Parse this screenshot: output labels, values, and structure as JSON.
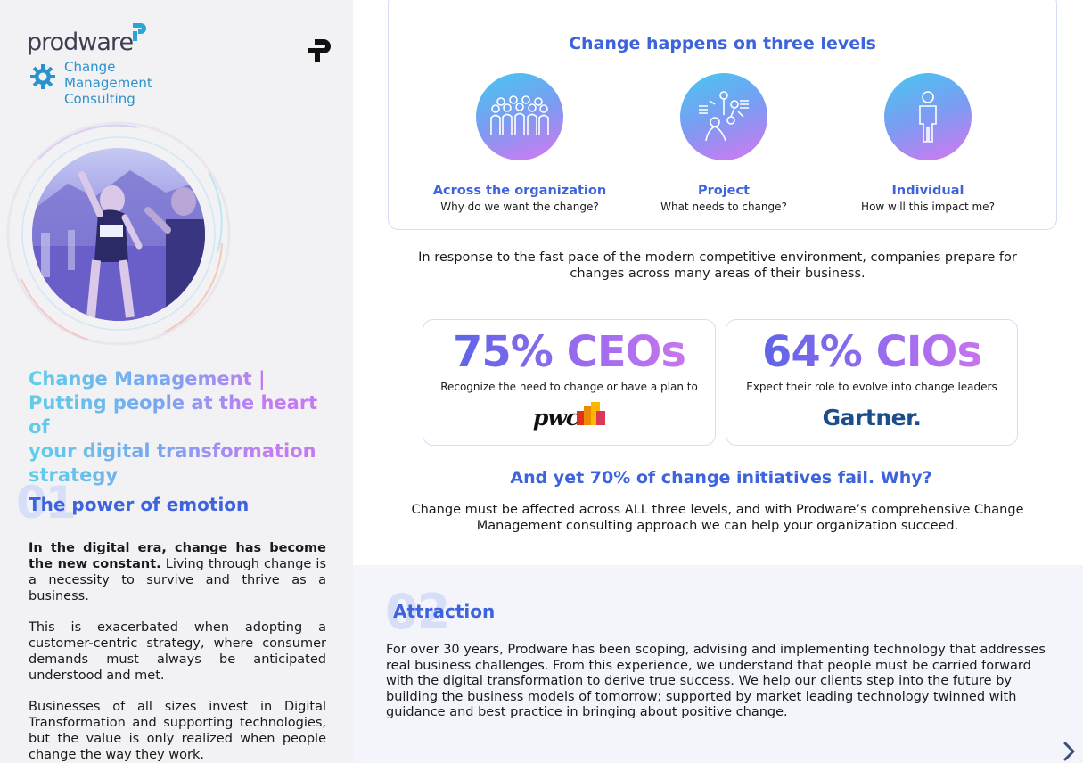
{
  "brand": {
    "name": "prodware",
    "sub_line1": "Change Management",
    "sub_line2": "Consulting"
  },
  "left": {
    "headline_lines": [
      "Change Management |",
      "Putting people at the heart of",
      "your digital transformation",
      "strategy"
    ],
    "section1": {
      "number": "01",
      "title": "The power of emotion",
      "p1_bold": "In the digital era, change has become the new constant.",
      "p1_rest": " Living through change is a necessity to survive and thrive as a business.",
      "p2": "This is exacerbated when adopting a customer-centric strategy, where consumer demands must always be anticipated understood and met.",
      "p3": "Businesses of all sizes invest in Digital Transformation and supporting technologies, but the value is only realized when people change the way they work."
    }
  },
  "levels": {
    "title": "Change happens on three levels",
    "items": [
      {
        "title": "Across the organization",
        "question": "Why do we want the change?",
        "icon": "group-icon"
      },
      {
        "title": "Project",
        "question": "What needs to change?",
        "icon": "team-project-icon"
      },
      {
        "title": "Individual",
        "question": "How will this impact me?",
        "icon": "person-icon"
      }
    ]
  },
  "intro": "In response to the fast pace of the modern competitive environment, companies prepare for changes across many areas of their business.",
  "stats": [
    {
      "value": "75% CEOs",
      "text": "Recognize the need to change or have a plan to",
      "source": "pwc"
    },
    {
      "value": "64% CIOs",
      "text": "Expect their role to evolve into change leaders",
      "source": "Gartner."
    }
  ],
  "yet": "And yet 70% of change initiatives fail.  Why?",
  "outro": "Change must be affected across ALL three levels, and with Prodware’s comprehensive Change Management consulting approach we can help your organization succeed.",
  "section2": {
    "number": "02",
    "title": "Attraction",
    "body": "For over 30 years, Prodware has been scoping, advising and implementing technology that addresses real business challenges.  From this experience, we understand that people must be carried forward with the digital transformation to derive true success.  We help our clients step into the future by building the business models of tomorrow; supported by market leading technology twinned with guidance and best practice in bringing about positive change."
  },
  "colors": {
    "accent": "#3d63dd",
    "panel": "#f2f1f4",
    "logo_blue": "#2a93cc"
  }
}
